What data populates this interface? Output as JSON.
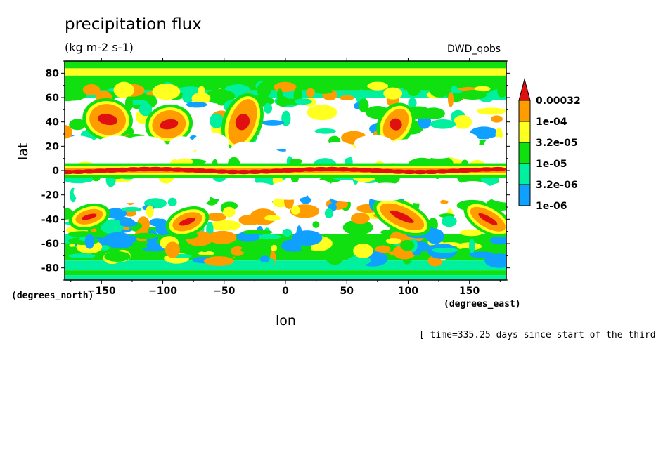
{
  "chart_data": {
    "type": "heatmap",
    "title": "precipitation flux",
    "units": "(kg m-2 s-1)",
    "dataset": "DWD_qobs",
    "xlabel": "lon",
    "ylabel": "lat",
    "x_units": "(degrees_east)",
    "y_units": "(degrees_north)",
    "time_note": "[ time=335.25 days since start of the third",
    "xlim": [
      -180,
      180
    ],
    "ylim": [
      -90,
      90
    ],
    "x_ticks": [
      -150,
      -100,
      -50,
      0,
      50,
      100,
      150
    ],
    "y_ticks": [
      80,
      60,
      40,
      20,
      0,
      -20,
      -40,
      -60,
      -80
    ],
    "legend": {
      "levels": [
        "0.00032",
        "1e-04",
        "3.2e-05",
        "1e-05",
        "3.2e-06",
        "1e-06"
      ],
      "colors": [
        "#e01010",
        "#ff9c00",
        "#ffff20",
        "#10e010",
        "#00f0a0",
        "#10a0ff"
      ]
    },
    "features": [
      {
        "name": "ITCZ band",
        "lat": 0,
        "lon_range": [
          -180,
          180
        ],
        "level": "0.00032"
      },
      {
        "name": "Arctic band",
        "lat": 86,
        "lon_range": [
          -180,
          180
        ],
        "level": "1e-04"
      },
      {
        "name": "Southern ocean band",
        "lat": -70,
        "lon_range": [
          -180,
          180
        ],
        "level": "1e-05"
      },
      {
        "name": "North Pacific storm",
        "lat": 42,
        "lon": -145,
        "level": "1e-04"
      },
      {
        "name": "North Pacific cyclone",
        "lat": 38,
        "lon": -95,
        "level": "0.00032"
      },
      {
        "name": "North Atlantic front",
        "lat": 40,
        "lon": -35,
        "level": "0.00032"
      },
      {
        "name": "Asian front",
        "lat": 38,
        "lon": 90,
        "level": "0.00032"
      },
      {
        "name": "South Indian front",
        "lat": -38,
        "lon": 95,
        "level": "0.00032"
      },
      {
        "name": "South Pacific front",
        "lat": -40,
        "lon": 165,
        "level": "0.00032"
      }
    ]
  }
}
